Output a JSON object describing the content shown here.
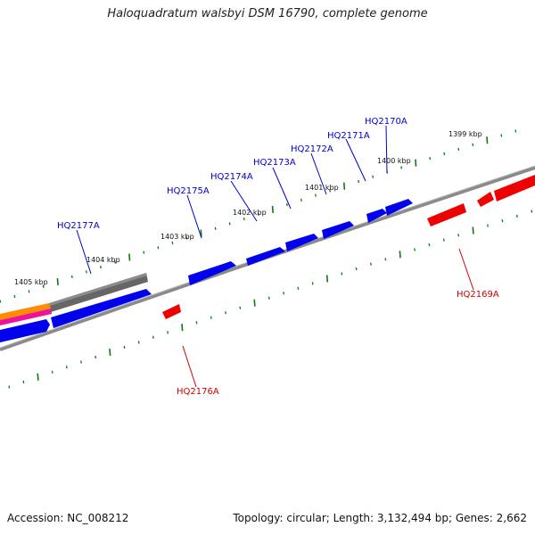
{
  "title": "Haloquadratum walsbyi DSM 16790, complete genome",
  "footer": {
    "accession": "Accession: NC_008212",
    "summary": "Topology: circular; Length: 3,132,494 bp; Genes: 2,662"
  },
  "colors": {
    "forward_gene": "#0000ee",
    "reverse_gene": "#ee0000",
    "backbone": "#888888",
    "tick": "#117711",
    "orange_track": "#ff8c00",
    "magenta_track": "#ee1199",
    "gray_track": "#666666"
  },
  "kbp_labels": [
    "1405 kbp",
    "1404 kbp",
    "1403 kbp",
    "1402 kbp",
    "1401 kbp",
    "1400 kbp",
    "1399 kbp"
  ],
  "gene_labels": {
    "forward": [
      "HQ2177A",
      "HQ2175A",
      "HQ2174A",
      "HQ2173A",
      "HQ2172A",
      "HQ2171A",
      "HQ2170A"
    ],
    "reverse": [
      "HQ2176A",
      "HQ2169A"
    ]
  }
}
